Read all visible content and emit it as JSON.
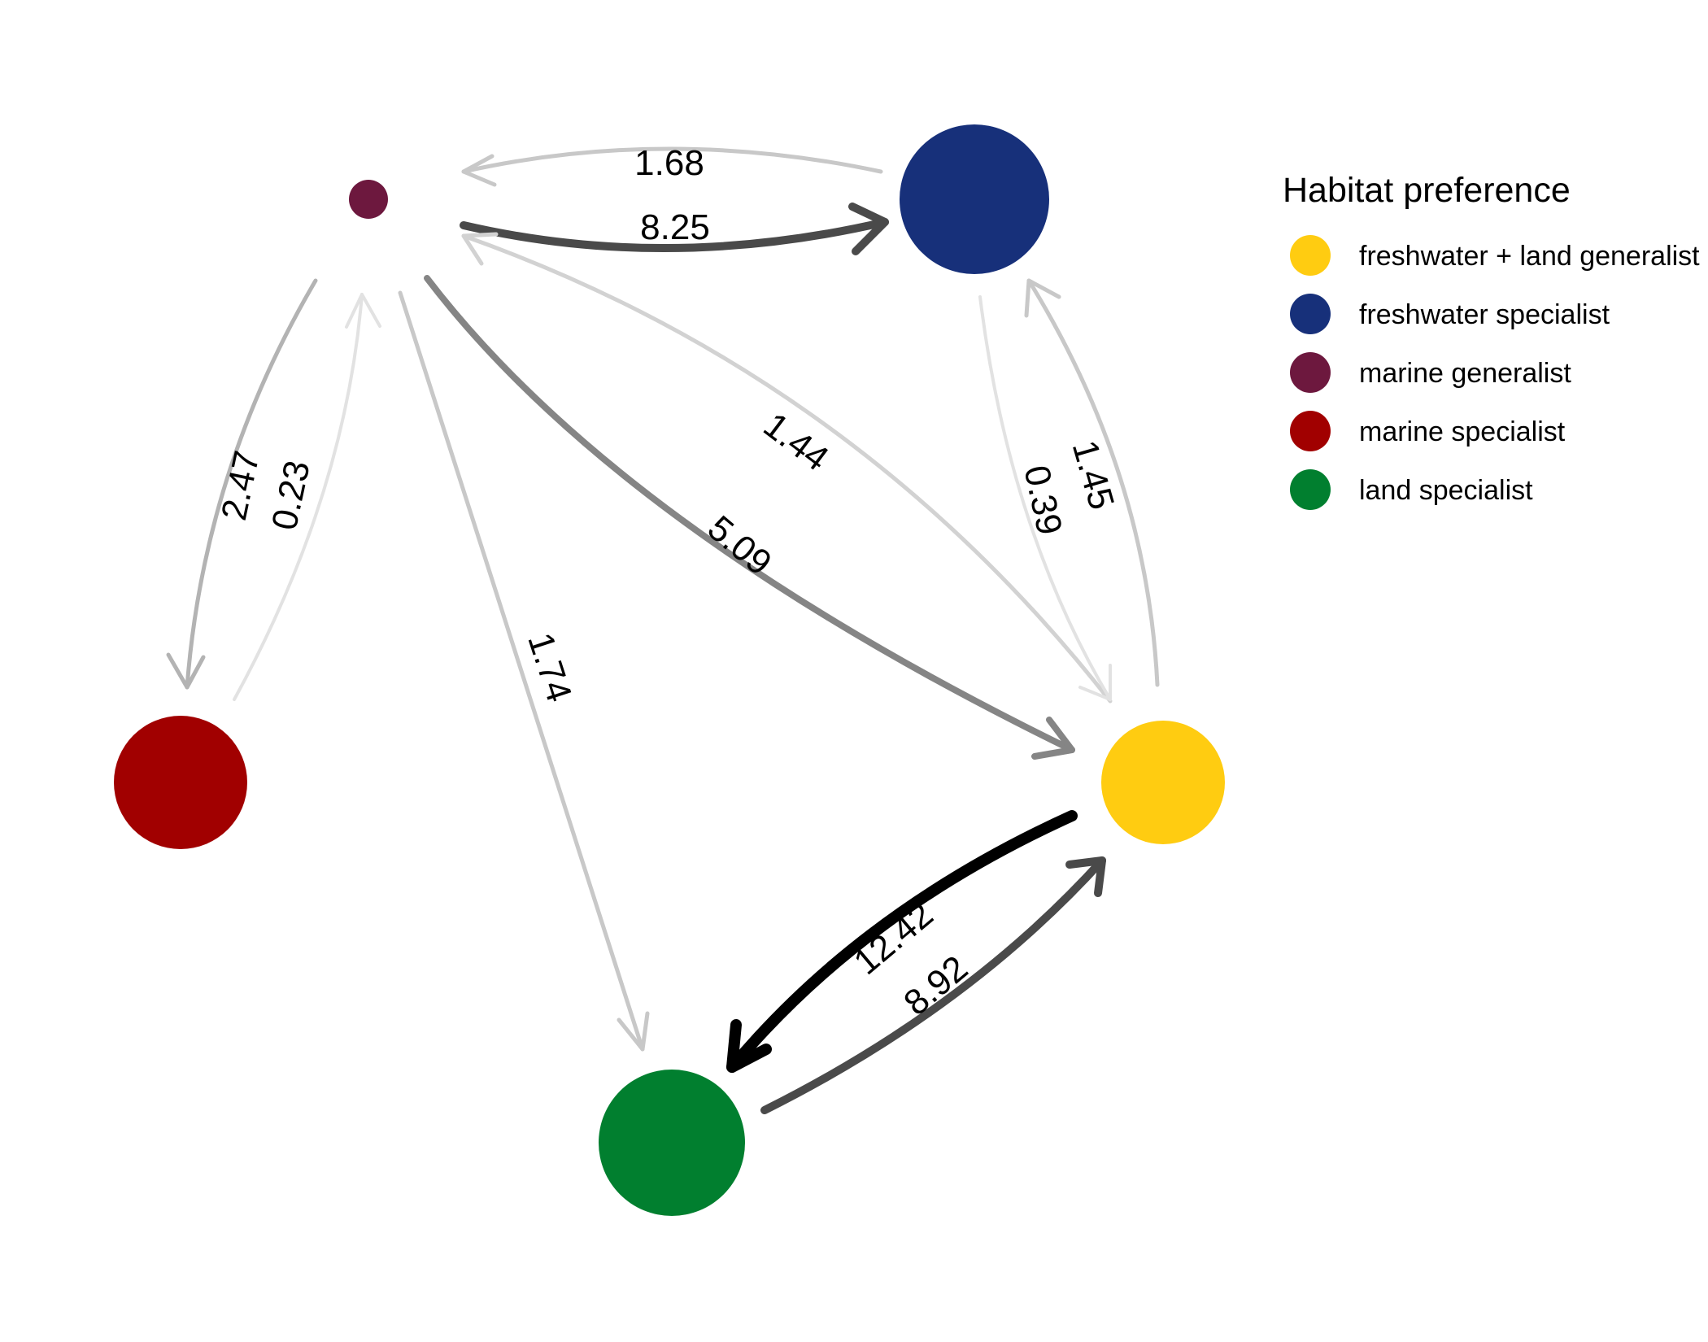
{
  "legend": {
    "title": "Habitat preference",
    "items": [
      {
        "id": "fwland",
        "label": "freshwater + land generalist",
        "color": "#FFCC11"
      },
      {
        "id": "fwspec",
        "label": "freshwater specialist",
        "color": "#17307A"
      },
      {
        "id": "margen",
        "label": "marine generalist",
        "color": "#6D183E"
      },
      {
        "id": "marspec",
        "label": "marine specialist",
        "color": "#A10000"
      },
      {
        "id": "landspec",
        "label": "land specialist",
        "color": "#017F2F"
      }
    ]
  },
  "nodes": [
    {
      "id": "margen",
      "color": "#6D183E"
    },
    {
      "id": "fwspec",
      "color": "#17307A"
    },
    {
      "id": "marspec",
      "color": "#A10000"
    },
    {
      "id": "fwland",
      "color": "#FFCC11"
    },
    {
      "id": "landspec",
      "color": "#017F2F"
    }
  ],
  "edges": [
    {
      "from": "fwspec",
      "to": "margen",
      "label": "1.68"
    },
    {
      "from": "margen",
      "to": "fwspec",
      "label": "8.25"
    },
    {
      "from": "margen",
      "to": "marspec",
      "label": "2.47"
    },
    {
      "from": "marspec",
      "to": "margen",
      "label": "0.23"
    },
    {
      "from": "margen",
      "to": "landspec",
      "label": "1.74"
    },
    {
      "from": "fwland",
      "to": "margen",
      "label": "1.44"
    },
    {
      "from": "margen",
      "to": "fwland",
      "label": "5.09"
    },
    {
      "from": "fwspec",
      "to": "fwland",
      "label": "0.39"
    },
    {
      "from": "fwland",
      "to": "fwspec",
      "label": "1.45"
    },
    {
      "from": "fwland",
      "to": "landspec",
      "label": "12.42"
    },
    {
      "from": "landspec",
      "to": "fwland",
      "label": "8.92"
    }
  ]
}
